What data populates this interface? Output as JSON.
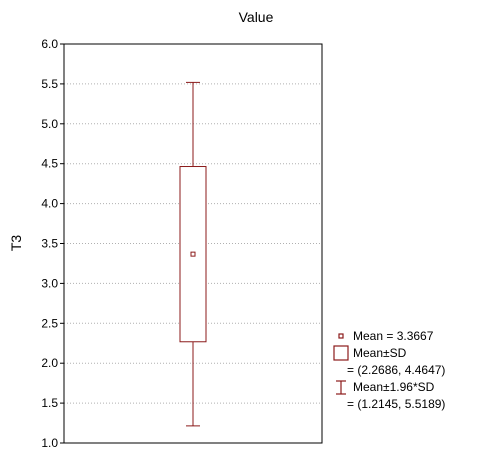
{
  "colors": {
    "series": "#8B1A1A",
    "grid": "#b0b0b0",
    "axis": "#000000"
  },
  "chart_data": {
    "type": "box",
    "title": "Value",
    "xlabel": "",
    "ylabel": "T3",
    "ylim": [
      1.0,
      6.0
    ],
    "yticks": [
      "1.0",
      "1.5",
      "2.0",
      "2.5",
      "3.0",
      "3.5",
      "4.0",
      "4.5",
      "5.0",
      "5.5",
      "6.0"
    ],
    "grid": true,
    "legend_position": "bottom-right, outside plot",
    "stats": {
      "mean": 3.3667,
      "sd_low": 2.2686,
      "sd_high": 4.4647,
      "ci_low": 1.2145,
      "ci_high": 5.5189
    }
  },
  "legend": {
    "mean_label": "Mean = 3.3667",
    "sd_label": "Mean±SD",
    "sd_range": "= (2.2686, 4.4647)",
    "ci_label": "Mean±1.96*SD",
    "ci_range": "= (1.2145, 5.5189)"
  }
}
